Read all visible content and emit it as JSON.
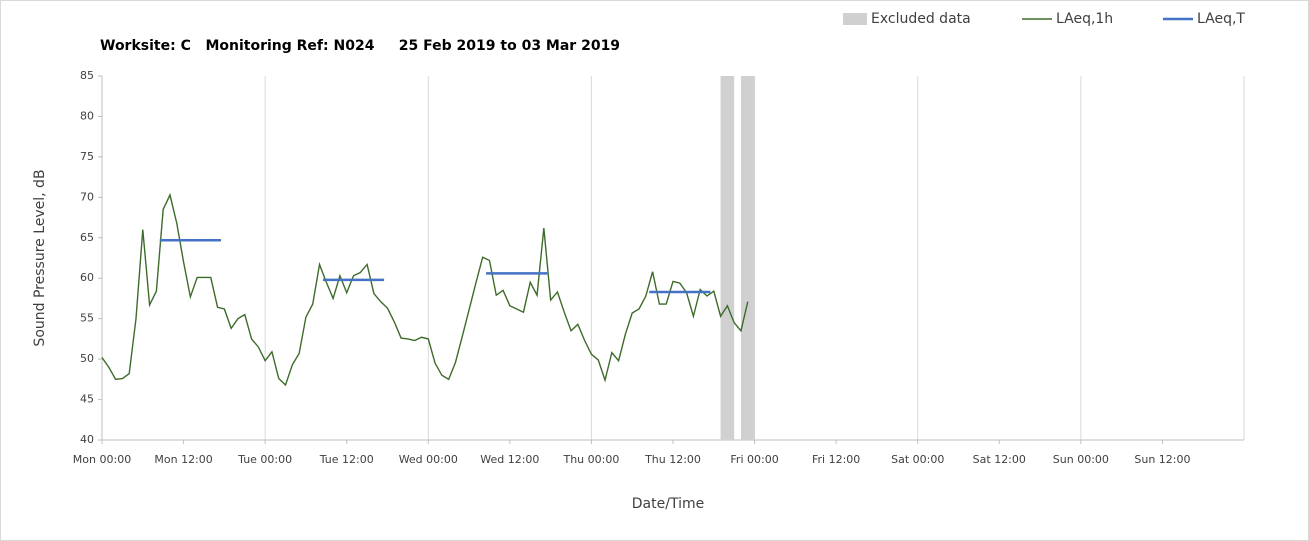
{
  "chart_data": {
    "type": "line",
    "title": "Worksite: C   Monitoring Ref: N024     25 Feb 2019 to 03 Mar 2019",
    "x_label": "Date/Time",
    "y_label": "Sound Pressure Level, dB",
    "xlim": [
      0,
      168
    ],
    "ylim": [
      40,
      85
    ],
    "yticks": [
      40,
      45,
      50,
      55,
      60,
      65,
      70,
      75,
      80,
      85
    ],
    "xticks": [
      {
        "value": 0,
        "label": "Mon 00:00"
      },
      {
        "value": 12,
        "label": "Mon 12:00"
      },
      {
        "value": 24,
        "label": "Tue 00:00"
      },
      {
        "value": 36,
        "label": "Tue 12:00"
      },
      {
        "value": 48,
        "label": "Wed 00:00"
      },
      {
        "value": 60,
        "label": "Wed 12:00"
      },
      {
        "value": 72,
        "label": "Thu 00:00"
      },
      {
        "value": 84,
        "label": "Thu 12:00"
      },
      {
        "value": 96,
        "label": "Fri 00:00"
      },
      {
        "value": 108,
        "label": "Fri 12:00"
      },
      {
        "value": 120,
        "label": "Sat 00:00"
      },
      {
        "value": 132,
        "label": "Sat 12:00"
      },
      {
        "value": 144,
        "label": "Sun 00:00"
      },
      {
        "value": 156,
        "label": "Sun 12:00"
      }
    ],
    "grid": true,
    "legend": "top-right",
    "series": [
      {
        "name": "Excluded data",
        "color": "#d0d0d0",
        "bands": [
          [
            91,
            93
          ],
          [
            94,
            96
          ]
        ]
      },
      {
        "name": "LAeq,1h",
        "color": "#3d6b2a",
        "x": [
          0,
          1,
          2,
          3,
          4,
          5,
          6,
          7,
          8,
          9,
          10,
          11,
          12,
          13,
          14,
          15,
          16,
          17,
          18,
          19,
          20,
          21,
          22,
          23,
          24,
          25,
          26,
          27,
          28,
          29,
          30,
          31,
          32,
          33,
          34,
          35,
          36,
          37,
          38,
          39,
          40,
          41,
          42,
          43,
          44,
          45,
          46,
          47,
          48,
          49,
          50,
          51,
          52,
          53,
          54,
          55,
          56,
          57,
          58,
          59,
          60,
          61,
          62,
          63,
          64,
          65,
          66,
          67,
          68,
          69,
          70,
          71,
          72,
          73,
          74,
          75,
          76,
          77,
          78,
          79,
          80,
          81,
          82,
          83,
          84,
          85,
          86,
          87,
          88,
          89,
          90,
          91,
          92,
          93,
          94,
          95
        ],
        "values": [
          50.2,
          49,
          47.5,
          47.6,
          48.2,
          55,
          66,
          56.7,
          58.4,
          68.5,
          70.3,
          66.8,
          62,
          57.7,
          60.1,
          60.1,
          60.1,
          56.4,
          56.2,
          53.8,
          55,
          55.5,
          52.5,
          51.5,
          49.8,
          50.9,
          47.6,
          46.8,
          49.3,
          50.7,
          55.2,
          56.8,
          61.7,
          59.5,
          57.5,
          60.3,
          58.2,
          60.3,
          60.7,
          61.7,
          58.1,
          57.1,
          56.3,
          54.6,
          52.6,
          52.5,
          52.3,
          52.7,
          52.5,
          49.5,
          48,
          47.5,
          49.6,
          52.8,
          56.1,
          59.4,
          62.6,
          62.2,
          57.9,
          58.5,
          56.6,
          56.2,
          55.8,
          59.5,
          57.9,
          66.2,
          57.3,
          58.3,
          55.8,
          53.5,
          54.3,
          52.3,
          50.6,
          49.9,
          47.4,
          50.8,
          49.8,
          53.1,
          55.7,
          56.2,
          57.8,
          60.8,
          56.8,
          56.8,
          59.6,
          59.4,
          58.2,
          55.3,
          58.6,
          57.8,
          58.4,
          55.3,
          56.6,
          54.5,
          53.5,
          57.1
        ]
      },
      {
        "name": "LAeq,T",
        "color": "#4472c4",
        "segments": [
          {
            "x": [
              8.5,
              17.5
            ],
            "value": 64.7
          },
          {
            "x": [
              32.5,
              41.5
            ],
            "value": 59.8
          },
          {
            "x": [
              56.5,
              65.5
            ],
            "value": 60.6
          },
          {
            "x": [
              80.5,
              89.5
            ],
            "value": 58.3
          }
        ]
      }
    ]
  }
}
